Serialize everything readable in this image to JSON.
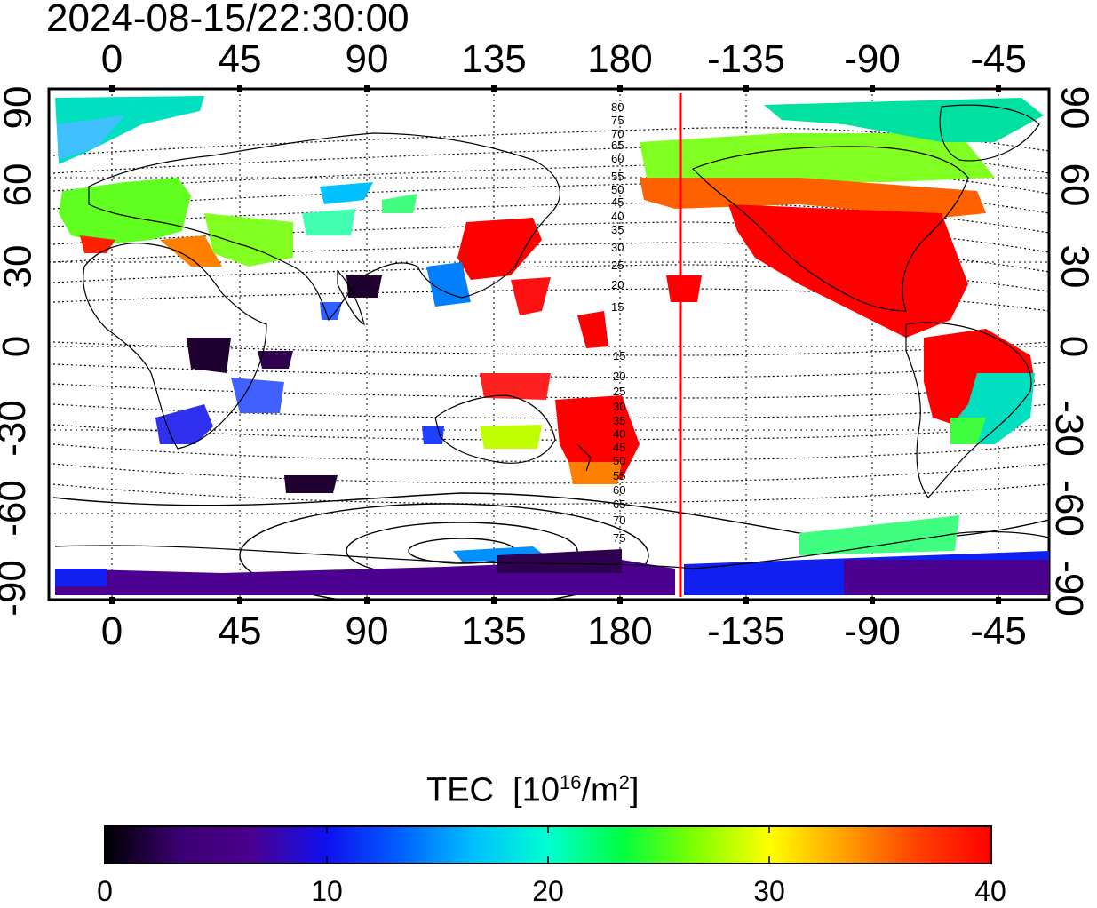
{
  "header": {
    "timestamp": "2024-08-15/22:30:00"
  },
  "axes": {
    "x_ticks": [
      "0",
      "45",
      "90",
      "135",
      "180",
      "-135",
      "-90",
      "-45"
    ],
    "y_ticks": [
      "90",
      "60",
      "30",
      "0",
      "-30",
      "-60",
      "-90"
    ]
  },
  "map": {
    "type": "TEC world map",
    "projection": "equirectangular",
    "longitude_range": "-20 to 340 (0 to 180, -180 to -20)",
    "latitude_range": [
      -90,
      90
    ],
    "terminator_line_color": "#ff0000",
    "terminator_longitude": -154,
    "contour_labels_north": [
      "80",
      "75",
      "70",
      "65",
      "60",
      "55",
      "50",
      "45",
      "40",
      "35",
      "30",
      "25",
      "20",
      "15"
    ],
    "contour_labels_south": [
      "15",
      "20",
      "25",
      "30",
      "35",
      "40",
      "45",
      "50",
      "55",
      "60",
      "65",
      "70",
      "75"
    ]
  },
  "colorbar": {
    "title": "TEC",
    "unit_base": "[10",
    "unit_exp": "16",
    "unit_mid": "/m",
    "unit_exp2": "2",
    "unit_end": "]",
    "ticks": [
      "0",
      "10",
      "20",
      "30",
      "40"
    ],
    "min": 0,
    "max": 40,
    "colors": [
      "#000000",
      "#3a0070",
      "#4b0090",
      "#1010f0",
      "#0060ff",
      "#00c0ff",
      "#00ffd0",
      "#00ff40",
      "#80ff00",
      "#ffff00",
      "#ffa000",
      "#ff4000",
      "#ff0000"
    ]
  }
}
